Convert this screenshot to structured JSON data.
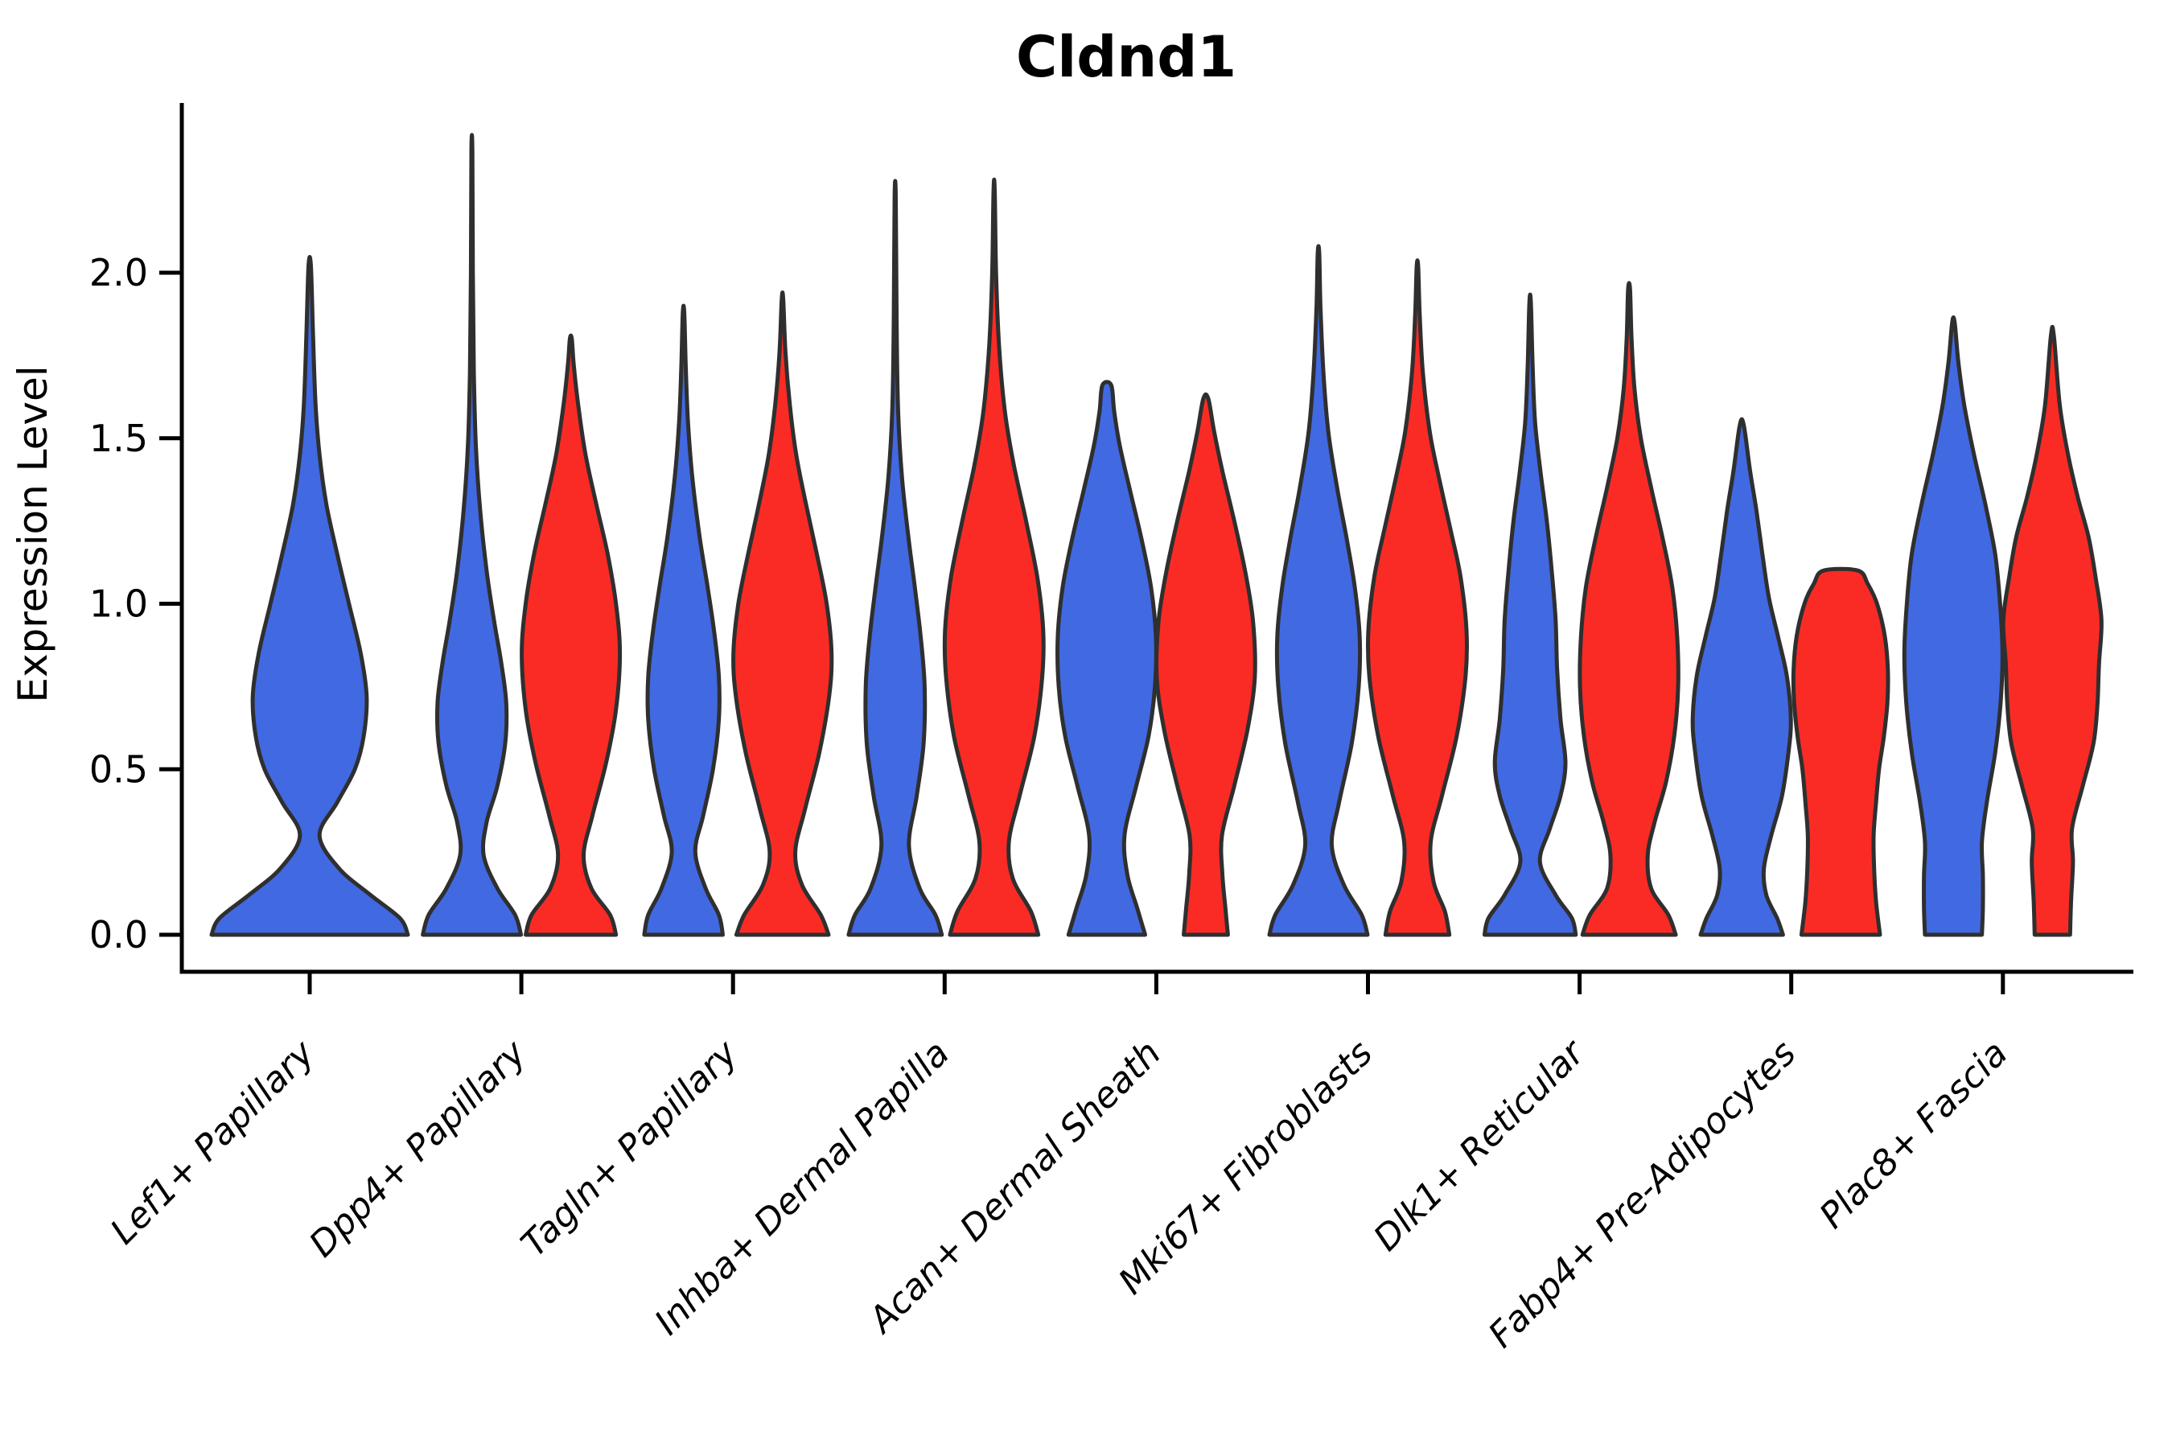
{
  "chart_data": {
    "type": "violin",
    "title": "Cldnd1",
    "ylabel": "Expression Level",
    "xlabel": "",
    "legend": "none",
    "grid": false,
    "x_tick_rotation": 45,
    "ylim": [
      -0.11,
      2.51
    ],
    "y_ticks": [
      0.0,
      0.5,
      1.0,
      1.5,
      2.0
    ],
    "y_tick_labels": [
      "0.0",
      "0.5",
      "1.0",
      "1.5",
      "2.0"
    ],
    "colors": {
      "blue": "#4169E1",
      "red": "#FA2B25",
      "outline": "#2F2F2F",
      "text": "#000000"
    },
    "categories": [
      "Lef1+ Papillary",
      "Dpp4+ Papillary",
      "Tagln+ Papillary",
      "Inhba+ Dermal Papilla",
      "Acan+ Dermal Sheath",
      "Mki67+ Fibroblasts",
      "Dlk1+ Reticular",
      "Fabp4+ Pre-Adipocytes",
      "Plac8+ Fascia"
    ],
    "violins": [
      {
        "category_index": 0,
        "side": "blue",
        "span": "full",
        "max": 2.02,
        "profile": [
          [
            0,
            1.0
          ],
          [
            0.05,
            0.92
          ],
          [
            0.12,
            0.62
          ],
          [
            0.2,
            0.3
          ],
          [
            0.3,
            0.1
          ],
          [
            0.4,
            0.28
          ],
          [
            0.5,
            0.46
          ],
          [
            0.6,
            0.55
          ],
          [
            0.72,
            0.58
          ],
          [
            0.85,
            0.52
          ],
          [
            1.0,
            0.4
          ],
          [
            1.15,
            0.28
          ],
          [
            1.3,
            0.17
          ],
          [
            1.45,
            0.1
          ],
          [
            1.6,
            0.06
          ],
          [
            1.8,
            0.035
          ],
          [
            2.02,
            0.012
          ]
        ]
      },
      {
        "category_index": 1,
        "side": "blue",
        "span": "half",
        "max": 2.37,
        "profile": [
          [
            0,
            1.0
          ],
          [
            0.06,
            0.88
          ],
          [
            0.14,
            0.52
          ],
          [
            0.24,
            0.24
          ],
          [
            0.34,
            0.3
          ],
          [
            0.45,
            0.52
          ],
          [
            0.58,
            0.68
          ],
          [
            0.7,
            0.7
          ],
          [
            0.82,
            0.6
          ],
          [
            0.95,
            0.45
          ],
          [
            1.1,
            0.3
          ],
          [
            1.28,
            0.17
          ],
          [
            1.48,
            0.08
          ],
          [
            1.7,
            0.04
          ],
          [
            2.0,
            0.02
          ],
          [
            2.37,
            0.01
          ]
        ]
      },
      {
        "category_index": 1,
        "side": "red",
        "span": "half",
        "max": 1.8,
        "profile": [
          [
            0,
            0.92
          ],
          [
            0.06,
            0.8
          ],
          [
            0.14,
            0.42
          ],
          [
            0.24,
            0.26
          ],
          [
            0.36,
            0.44
          ],
          [
            0.52,
            0.72
          ],
          [
            0.68,
            0.92
          ],
          [
            0.85,
            1.0
          ],
          [
            1.0,
            0.92
          ],
          [
            1.15,
            0.75
          ],
          [
            1.3,
            0.52
          ],
          [
            1.45,
            0.3
          ],
          [
            1.6,
            0.15
          ],
          [
            1.72,
            0.06
          ],
          [
            1.8,
            0.02
          ]
        ]
      },
      {
        "category_index": 2,
        "side": "blue",
        "span": "half",
        "max": 1.88,
        "profile": [
          [
            0,
            0.8
          ],
          [
            0.06,
            0.72
          ],
          [
            0.14,
            0.45
          ],
          [
            0.25,
            0.24
          ],
          [
            0.36,
            0.4
          ],
          [
            0.5,
            0.6
          ],
          [
            0.65,
            0.72
          ],
          [
            0.78,
            0.72
          ],
          [
            0.92,
            0.62
          ],
          [
            1.06,
            0.48
          ],
          [
            1.2,
            0.33
          ],
          [
            1.38,
            0.18
          ],
          [
            1.55,
            0.09
          ],
          [
            1.72,
            0.045
          ],
          [
            1.88,
            0.015
          ]
        ]
      },
      {
        "category_index": 2,
        "side": "red",
        "span": "half",
        "max": 1.92,
        "profile": [
          [
            0,
            0.94
          ],
          [
            0.06,
            0.78
          ],
          [
            0.15,
            0.4
          ],
          [
            0.25,
            0.26
          ],
          [
            0.38,
            0.46
          ],
          [
            0.55,
            0.75
          ],
          [
            0.72,
            0.95
          ],
          [
            0.85,
            1.0
          ],
          [
            1.0,
            0.9
          ],
          [
            1.15,
            0.7
          ],
          [
            1.3,
            0.48
          ],
          [
            1.45,
            0.28
          ],
          [
            1.6,
            0.15
          ],
          [
            1.76,
            0.06
          ],
          [
            1.92,
            0.015
          ]
        ]
      },
      {
        "category_index": 3,
        "side": "blue",
        "span": "half",
        "max": 2.23,
        "profile": [
          [
            0,
            0.95
          ],
          [
            0.06,
            0.82
          ],
          [
            0.14,
            0.5
          ],
          [
            0.27,
            0.28
          ],
          [
            0.42,
            0.44
          ],
          [
            0.58,
            0.58
          ],
          [
            0.75,
            0.6
          ],
          [
            0.9,
            0.52
          ],
          [
            1.05,
            0.4
          ],
          [
            1.2,
            0.27
          ],
          [
            1.38,
            0.14
          ],
          [
            1.58,
            0.06
          ],
          [
            1.85,
            0.03
          ],
          [
            2.23,
            0.012
          ]
        ]
      },
      {
        "category_index": 3,
        "side": "red",
        "span": "half",
        "max": 2.25,
        "profile": [
          [
            0,
            0.9
          ],
          [
            0.07,
            0.75
          ],
          [
            0.17,
            0.38
          ],
          [
            0.28,
            0.3
          ],
          [
            0.42,
            0.52
          ],
          [
            0.6,
            0.82
          ],
          [
            0.78,
            0.98
          ],
          [
            0.92,
            1.0
          ],
          [
            1.08,
            0.88
          ],
          [
            1.25,
            0.65
          ],
          [
            1.42,
            0.4
          ],
          [
            1.58,
            0.22
          ],
          [
            1.78,
            0.1
          ],
          [
            2.0,
            0.04
          ],
          [
            2.25,
            0.012
          ]
        ]
      },
      {
        "category_index": 4,
        "side": "blue",
        "span": "half",
        "max": 1.66,
        "profile": [
          [
            0,
            0.78
          ],
          [
            0.08,
            0.62
          ],
          [
            0.18,
            0.42
          ],
          [
            0.3,
            0.36
          ],
          [
            0.45,
            0.6
          ],
          [
            0.6,
            0.85
          ],
          [
            0.75,
            0.98
          ],
          [
            0.9,
            1.0
          ],
          [
            1.05,
            0.9
          ],
          [
            1.2,
            0.7
          ],
          [
            1.35,
            0.46
          ],
          [
            1.48,
            0.26
          ],
          [
            1.58,
            0.15
          ],
          [
            1.66,
            0.09
          ]
        ]
      },
      {
        "category_index": 4,
        "side": "red",
        "span": "half",
        "max": 1.62,
        "profile": [
          [
            0,
            0.45
          ],
          [
            0.08,
            0.4
          ],
          [
            0.18,
            0.34
          ],
          [
            0.3,
            0.33
          ],
          [
            0.45,
            0.58
          ],
          [
            0.62,
            0.85
          ],
          [
            0.78,
            1.0
          ],
          [
            0.95,
            0.96
          ],
          [
            1.1,
            0.8
          ],
          [
            1.25,
            0.58
          ],
          [
            1.4,
            0.34
          ],
          [
            1.52,
            0.17
          ],
          [
            1.62,
            0.05
          ]
        ]
      },
      {
        "category_index": 5,
        "side": "blue",
        "span": "half",
        "max": 2.06,
        "profile": [
          [
            0,
            1.0
          ],
          [
            0.06,
            0.88
          ],
          [
            0.15,
            0.52
          ],
          [
            0.27,
            0.27
          ],
          [
            0.4,
            0.42
          ],
          [
            0.58,
            0.68
          ],
          [
            0.75,
            0.82
          ],
          [
            0.9,
            0.84
          ],
          [
            1.05,
            0.74
          ],
          [
            1.2,
            0.57
          ],
          [
            1.35,
            0.38
          ],
          [
            1.52,
            0.2
          ],
          [
            1.7,
            0.1
          ],
          [
            1.9,
            0.04
          ],
          [
            2.06,
            0.015
          ]
        ]
      },
      {
        "category_index": 5,
        "side": "red",
        "span": "half",
        "max": 2.02,
        "profile": [
          [
            0,
            0.65
          ],
          [
            0.07,
            0.56
          ],
          [
            0.16,
            0.33
          ],
          [
            0.28,
            0.27
          ],
          [
            0.42,
            0.5
          ],
          [
            0.6,
            0.8
          ],
          [
            0.78,
            0.98
          ],
          [
            0.92,
            1.0
          ],
          [
            1.08,
            0.88
          ],
          [
            1.22,
            0.68
          ],
          [
            1.38,
            0.44
          ],
          [
            1.52,
            0.25
          ],
          [
            1.7,
            0.11
          ],
          [
            1.88,
            0.045
          ],
          [
            2.02,
            0.015
          ]
        ]
      },
      {
        "category_index": 6,
        "side": "blue",
        "span": "half",
        "max": 1.91,
        "profile": [
          [
            0,
            0.93
          ],
          [
            0.05,
            0.85
          ],
          [
            0.12,
            0.52
          ],
          [
            0.22,
            0.2
          ],
          [
            0.32,
            0.4
          ],
          [
            0.42,
            0.62
          ],
          [
            0.52,
            0.72
          ],
          [
            0.65,
            0.62
          ],
          [
            0.8,
            0.55
          ],
          [
            0.95,
            0.52
          ],
          [
            1.1,
            0.44
          ],
          [
            1.25,
            0.34
          ],
          [
            1.4,
            0.21
          ],
          [
            1.55,
            0.1
          ],
          [
            1.72,
            0.05
          ],
          [
            1.91,
            0.015
          ]
        ]
      },
      {
        "category_index": 6,
        "side": "red",
        "span": "half",
        "max": 1.95,
        "profile": [
          [
            0,
            0.95
          ],
          [
            0.06,
            0.8
          ],
          [
            0.14,
            0.45
          ],
          [
            0.24,
            0.38
          ],
          [
            0.34,
            0.52
          ],
          [
            0.46,
            0.75
          ],
          [
            0.6,
            0.92
          ],
          [
            0.75,
            1.0
          ],
          [
            0.9,
            0.98
          ],
          [
            1.05,
            0.88
          ],
          [
            1.2,
            0.68
          ],
          [
            1.35,
            0.45
          ],
          [
            1.5,
            0.24
          ],
          [
            1.65,
            0.11
          ],
          [
            1.8,
            0.05
          ],
          [
            1.95,
            0.02
          ]
        ]
      },
      {
        "category_index": 7,
        "side": "blue",
        "span": "half",
        "max": 1.54,
        "profile": [
          [
            0,
            0.84
          ],
          [
            0.05,
            0.72
          ],
          [
            0.12,
            0.5
          ],
          [
            0.2,
            0.45
          ],
          [
            0.3,
            0.6
          ],
          [
            0.42,
            0.82
          ],
          [
            0.55,
            0.95
          ],
          [
            0.65,
            1.0
          ],
          [
            0.78,
            0.92
          ],
          [
            0.9,
            0.74
          ],
          [
            1.02,
            0.55
          ],
          [
            1.15,
            0.42
          ],
          [
            1.28,
            0.3
          ],
          [
            1.4,
            0.17
          ],
          [
            1.54,
            0.04
          ]
        ]
      },
      {
        "category_index": 7,
        "side": "red",
        "span": "half",
        "max": 1.1,
        "flat_top": true,
        "profile": [
          [
            0,
            0.8
          ],
          [
            0.1,
            0.72
          ],
          [
            0.2,
            0.68
          ],
          [
            0.3,
            0.67
          ],
          [
            0.4,
            0.72
          ],
          [
            0.5,
            0.78
          ],
          [
            0.6,
            0.88
          ],
          [
            0.7,
            0.95
          ],
          [
            0.8,
            0.96
          ],
          [
            0.9,
            0.9
          ],
          [
            1.0,
            0.74
          ],
          [
            1.06,
            0.55
          ],
          [
            1.1,
            0.35
          ]
        ]
      },
      {
        "category_index": 8,
        "side": "blue",
        "span": "half",
        "max": 1.85,
        "profile": [
          [
            0,
            0.58
          ],
          [
            0.08,
            0.6
          ],
          [
            0.18,
            0.6
          ],
          [
            0.28,
            0.58
          ],
          [
            0.4,
            0.68
          ],
          [
            0.55,
            0.85
          ],
          [
            0.7,
            0.96
          ],
          [
            0.85,
            1.0
          ],
          [
            1.0,
            0.95
          ],
          [
            1.15,
            0.85
          ],
          [
            1.3,
            0.65
          ],
          [
            1.45,
            0.42
          ],
          [
            1.6,
            0.22
          ],
          [
            1.73,
            0.1
          ],
          [
            1.85,
            0.025
          ]
        ]
      },
      {
        "category_index": 8,
        "side": "red",
        "span": "half",
        "max": 1.81,
        "profile": [
          [
            0,
            0.36
          ],
          [
            0.1,
            0.38
          ],
          [
            0.22,
            0.42
          ],
          [
            0.32,
            0.4
          ],
          [
            0.45,
            0.62
          ],
          [
            0.58,
            0.84
          ],
          [
            0.7,
            0.92
          ],
          [
            0.82,
            0.95
          ],
          [
            0.95,
            1.0
          ],
          [
            1.08,
            0.88
          ],
          [
            1.2,
            0.74
          ],
          [
            1.32,
            0.52
          ],
          [
            1.45,
            0.32
          ],
          [
            1.6,
            0.15
          ],
          [
            1.81,
            0.03
          ]
        ]
      }
    ]
  }
}
